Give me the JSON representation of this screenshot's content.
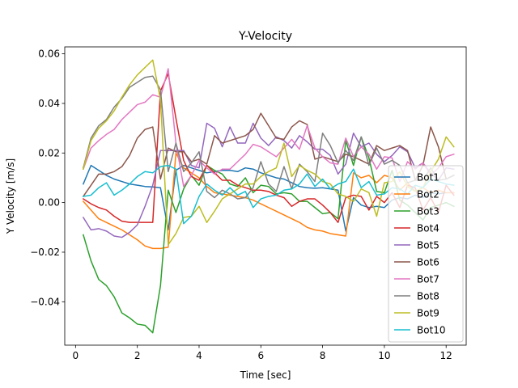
{
  "chart_data": {
    "type": "line",
    "title": "Y-Velocity",
    "xlabel": "Time [sec]",
    "ylabel": "Y Velocity [m/s]",
    "xlim": [
      -0.35,
      12.65
    ],
    "ylim": [
      -0.0575,
      0.0628
    ],
    "xticks": [
      0,
      2,
      4,
      6,
      8,
      10,
      12
    ],
    "xtick_labels": [
      "0",
      "2",
      "4",
      "6",
      "8",
      "10",
      "12"
    ],
    "yticks": [
      -0.04,
      -0.02,
      0.0,
      0.02,
      0.04,
      0.06
    ],
    "ytick_labels": [
      "−0.04",
      "−0.02",
      "0.00",
      "0.02",
      "0.04",
      "0.06"
    ],
    "grid": false,
    "legend_position": "lower right",
    "series": [
      {
        "name": "Bot1",
        "color": "#1f77b4",
        "x": [
          0.25,
          0.5,
          0.75,
          1.0,
          1.25,
          1.5,
          1.75,
          2.0,
          2.25,
          2.5,
          2.75,
          3.0,
          3.25,
          3.5,
          3.75,
          4.0,
          4.25,
          4.5,
          4.75,
          5.0,
          5.25,
          5.5,
          5.75,
          6.0,
          6.25,
          6.5,
          6.75,
          7.0,
          7.25,
          7.5,
          7.75,
          8.0,
          8.25,
          8.5,
          8.75,
          9.0,
          9.25,
          9.5,
          9.75,
          10.0,
          10.25,
          10.5,
          10.75,
          11.0,
          11.25,
          11.5,
          11.75,
          12.0,
          12.25
        ],
        "y": [
          0.0075,
          0.015,
          0.013,
          0.011,
          0.0095,
          0.0085,
          0.0075,
          0.007,
          0.0065,
          0.0063,
          0.006,
          -0.011,
          0.013,
          0.015,
          0.014,
          0.013,
          0.012,
          0.0125,
          0.013,
          0.013,
          0.0125,
          0.014,
          0.0135,
          0.012,
          0.011,
          0.01,
          0.0095,
          0.008,
          0.0065,
          0.006,
          0.0058,
          0.006,
          0.0055,
          0.005,
          -0.0115,
          0.002,
          -0.001,
          -0.002,
          -0.0015,
          -0.002,
          0.001,
          0.002,
          0.0015,
          0.003,
          0.002,
          0.004,
          0.0035,
          0.004,
          0.004
        ]
      },
      {
        "name": "Bot2",
        "color": "#ff7f0e",
        "x": [
          0.25,
          0.5,
          0.75,
          1.0,
          1.25,
          1.5,
          1.75,
          2.0,
          2.25,
          2.5,
          2.75,
          3.0,
          3.25,
          3.5,
          3.75,
          4.0,
          4.25,
          4.5,
          4.75,
          5.0,
          5.25,
          5.5,
          5.75,
          6.0,
          6.25,
          6.5,
          6.75,
          7.0,
          7.25,
          7.5,
          7.75,
          8.0,
          8.25,
          8.5,
          8.75,
          9.0,
          9.25,
          9.5,
          9.75,
          10.0,
          10.25,
          10.5,
          10.75,
          11.0,
          11.25,
          11.5,
          11.75,
          12.0,
          12.25
        ],
        "y": [
          0.0005,
          -0.003,
          -0.0065,
          -0.008,
          -0.0095,
          -0.011,
          -0.013,
          -0.015,
          -0.0175,
          -0.0185,
          -0.0185,
          -0.018,
          0.02,
          0.014,
          0.012,
          0.01,
          0.0065,
          0.004,
          0.0035,
          0.003,
          0.0025,
          0.002,
          0.001,
          -0.0005,
          -0.002,
          -0.0035,
          -0.005,
          -0.0065,
          -0.008,
          -0.01,
          -0.011,
          -0.0115,
          -0.0125,
          -0.013,
          -0.0135,
          0.012,
          0.01,
          0.011,
          0.008,
          0.011,
          0.01,
          0.005,
          0.008,
          0.0045,
          0.006,
          0.004,
          0.005,
          0.004,
          0.004
        ]
      },
      {
        "name": "Bot3",
        "color": "#2ca02c",
        "x": [
          0.25,
          0.5,
          0.75,
          1.0,
          1.25,
          1.5,
          1.75,
          2.0,
          2.25,
          2.5,
          2.75,
          3.0,
          3.25,
          3.5,
          3.75,
          4.0,
          4.25,
          4.5,
          4.75,
          5.0,
          5.25,
          5.5,
          5.75,
          6.0,
          6.25,
          6.5,
          6.75,
          7.0,
          7.25,
          7.5,
          7.75,
          8.0,
          8.25,
          8.5,
          8.75,
          9.0,
          9.25,
          9.5,
          9.75,
          10.0,
          10.25,
          10.5,
          10.75,
          11.0,
          11.25,
          11.5,
          11.75,
          12.0,
          12.25
        ],
        "y": [
          -0.013,
          -0.0235,
          -0.031,
          -0.0335,
          -0.038,
          -0.0445,
          -0.0465,
          -0.049,
          -0.0495,
          -0.0525,
          -0.0335,
          0.005,
          -0.004,
          0.0055,
          0.011,
          0.007,
          0.015,
          0.013,
          0.0115,
          0.0075,
          0.0065,
          0.01,
          0.004,
          0.007,
          0.0065,
          0.0035,
          0.004,
          0.0035,
          0.0005,
          0.0005,
          -0.002,
          -0.0045,
          -0.004,
          -0.0065,
          0.025,
          0.015,
          0.0265,
          0.018,
          0.0045,
          0.004,
          0.013,
          0.001,
          -0.001,
          -0.004,
          -0.007,
          -0.002,
          -0.001,
          0.0,
          -0.0015
        ]
      },
      {
        "name": "Bot4",
        "color": "#d62728",
        "x": [
          0.25,
          0.5,
          0.75,
          1.0,
          1.25,
          1.5,
          1.75,
          2.0,
          2.25,
          2.5,
          2.75,
          3.0,
          3.25,
          3.5,
          3.75,
          4.0,
          4.25,
          4.5,
          4.75,
          5.0,
          5.25,
          5.5,
          5.75,
          6.0,
          6.25,
          6.5,
          6.75,
          7.0,
          7.25,
          7.5,
          7.75,
          8.0,
          8.25,
          8.5,
          8.75,
          9.0,
          9.25,
          9.5,
          9.75,
          10.0,
          10.25,
          10.5,
          10.75,
          11.0,
          11.25,
          11.5,
          11.75,
          12.0,
          12.25
        ],
        "y": [
          0.0015,
          -0.0005,
          -0.002,
          -0.003,
          -0.0055,
          -0.0075,
          -0.008,
          -0.008,
          -0.008,
          -0.008,
          0.045,
          0.052,
          0.034,
          0.017,
          0.0105,
          0.009,
          0.015,
          0.012,
          0.009,
          0.009,
          0.007,
          0.006,
          0.005,
          0.005,
          0.0045,
          0.003,
          0.002,
          -0.0015,
          0.0005,
          0.0015,
          0.0015,
          -0.001,
          -0.004,
          -0.008,
          0.002,
          0.003,
          0.0025,
          -0.003,
          0.0025,
          0.0,
          0.004,
          -0.002,
          0.007,
          0.006,
          -0.003,
          0.002,
          -0.004,
          0.007,
          0.003
        ]
      },
      {
        "name": "Bot5",
        "color": "#9467bd",
        "x": [
          0.25,
          0.5,
          0.75,
          1.0,
          1.25,
          1.5,
          1.75,
          2.0,
          2.25,
          2.5,
          2.75,
          3.0,
          3.25,
          3.5,
          3.75,
          4.0,
          4.25,
          4.5,
          4.75,
          5.0,
          5.25,
          5.5,
          5.75,
          6.0,
          6.25,
          6.5,
          6.75,
          7.0,
          7.25,
          7.5,
          7.75,
          8.0,
          8.25,
          8.5,
          8.75,
          9.0,
          9.25,
          9.5,
          9.75,
          10.0,
          10.25,
          10.5,
          10.75,
          11.0,
          11.25,
          11.5,
          11.75,
          12.0,
          12.25
        ],
        "y": [
          -0.006,
          -0.011,
          -0.0105,
          -0.0115,
          -0.0135,
          -0.014,
          -0.012,
          -0.009,
          -0.0015,
          0.007,
          0.021,
          0.021,
          0.021,
          0.021,
          0.015,
          0.014,
          0.032,
          0.03,
          0.0225,
          0.0305,
          0.024,
          0.024,
          0.032,
          0.026,
          0.023,
          0.0265,
          0.025,
          0.022,
          0.027,
          0.0245,
          0.0215,
          0.0215,
          0.019,
          0.0115,
          0.0155,
          0.028,
          0.0225,
          0.024,
          0.0195,
          0.0165,
          0.019,
          0.0225,
          0.0205,
          0.014,
          0.016,
          0.012,
          0.009,
          0.014,
          0.0135
        ]
      },
      {
        "name": "Bot6",
        "color": "#8c564b",
        "x": [
          0.25,
          0.5,
          0.75,
          1.0,
          1.25,
          1.5,
          1.75,
          2.0,
          2.25,
          2.5,
          2.75,
          3.0,
          3.25,
          3.5,
          3.75,
          4.0,
          4.25,
          4.5,
          4.75,
          5.0,
          5.25,
          5.5,
          5.75,
          6.0,
          6.25,
          6.5,
          6.75,
          7.0,
          7.25,
          7.5,
          7.75,
          8.0,
          8.25,
          8.5,
          8.75,
          9.0,
          9.25,
          9.5,
          9.75,
          10.0,
          10.25,
          10.5,
          10.75,
          11.0,
          11.25,
          11.5,
          11.75,
          12.0,
          12.25
        ],
        "y": [
          0.0025,
          0.007,
          0.0115,
          0.0115,
          0.0125,
          0.0145,
          0.019,
          0.026,
          0.0295,
          0.0305,
          0.0095,
          0.022,
          0.0205,
          0.0205,
          0.0165,
          0.0175,
          0.0155,
          0.027,
          0.024,
          0.025,
          0.026,
          0.027,
          0.0295,
          0.036,
          0.031,
          0.026,
          0.0255,
          0.0305,
          0.033,
          0.0315,
          0.0175,
          0.0185,
          0.0175,
          0.0165,
          0.0195,
          0.0185,
          0.017,
          0.0155,
          0.023,
          0.021,
          0.022,
          0.023,
          0.021,
          0.009,
          0.015,
          0.0305,
          0.0225,
          0.0095,
          0.011
        ]
      },
      {
        "name": "Bot7",
        "color": "#e377c2",
        "x": [
          0.25,
          0.5,
          0.75,
          1.0,
          1.25,
          1.5,
          1.75,
          2.0,
          2.25,
          2.5,
          2.75,
          3.0,
          3.25,
          3.5,
          3.75,
          4.0,
          4.25,
          4.5,
          4.75,
          5.0,
          5.25,
          5.5,
          5.75,
          6.0,
          6.25,
          6.5,
          6.75,
          7.0,
          7.25,
          7.5,
          7.75,
          8.0,
          8.25,
          8.5,
          8.75,
          9.0,
          9.25,
          9.5,
          9.75,
          10.0,
          10.25,
          10.5,
          10.75,
          11.0,
          11.25,
          11.5,
          11.75,
          12.0,
          12.25
        ],
        "y": [
          0.0135,
          0.022,
          0.025,
          0.0275,
          0.0295,
          0.0335,
          0.0365,
          0.0395,
          0.0405,
          0.0435,
          0.0425,
          0.054,
          0.024,
          0.0065,
          0.011,
          0.017,
          0.014,
          0.0115,
          0.0135,
          0.0135,
          0.0165,
          0.0195,
          0.0235,
          0.0225,
          0.0205,
          0.0185,
          0.022,
          0.0255,
          0.0215,
          0.031,
          0.022,
          0.0185,
          0.016,
          0.0155,
          0.026,
          0.0185,
          0.0225,
          0.0195,
          0.0135,
          0.0185,
          0.018,
          0.0085,
          0.0165,
          0.0135,
          0.016,
          0.011,
          0.014,
          0.0185,
          0.0195
        ]
      },
      {
        "name": "Bot8",
        "color": "#7f7f7f",
        "x": [
          0.25,
          0.5,
          0.75,
          1.0,
          1.25,
          1.5,
          1.75,
          2.0,
          2.25,
          2.5,
          2.75,
          3.0,
          3.25,
          3.5,
          3.75,
          4.0,
          4.25,
          4.5,
          4.75,
          5.0,
          5.25,
          5.5,
          5.75,
          6.0,
          6.25,
          6.5,
          6.75,
          7.0,
          7.25,
          7.5,
          7.75,
          8.0,
          8.25,
          8.5,
          8.75,
          9.0,
          9.25,
          9.5,
          9.75,
          10.0,
          10.25,
          10.5,
          10.75,
          11.0,
          11.25,
          11.5,
          11.75,
          12.0,
          12.25
        ],
        "y": [
          0.014,
          0.026,
          0.031,
          0.0335,
          0.0385,
          0.042,
          0.0465,
          0.0485,
          0.0505,
          0.051,
          0.0455,
          0.0125,
          0.024,
          0.0125,
          0.016,
          0.0205,
          0.0045,
          0.002,
          0.005,
          0.0035,
          0.0015,
          0.002,
          0.006,
          0.0165,
          0.0075,
          0.0045,
          0.0145,
          0.0055,
          0.0155,
          0.0125,
          0.0085,
          0.028,
          0.023,
          0.016,
          0.021,
          0.017,
          0.0265,
          0.015,
          0.022,
          0.0155,
          0.017,
          0.015,
          0.008,
          0.009,
          0.009,
          0.014,
          0.009,
          0.0095,
          0.011
        ]
      },
      {
        "name": "Bot9",
        "color": "#bcbd22",
        "x": [
          0.25,
          0.5,
          0.75,
          1.0,
          1.25,
          1.5,
          1.75,
          2.0,
          2.25,
          2.5,
          2.75,
          3.0,
          3.25,
          3.5,
          3.75,
          4.0,
          4.25,
          4.5,
          4.75,
          5.0,
          5.25,
          5.5,
          5.75,
          6.0,
          6.25,
          6.5,
          6.75,
          7.0,
          7.25,
          7.5,
          7.75,
          8.0,
          8.25,
          8.5,
          8.75,
          9.0,
          9.25,
          9.5,
          9.75,
          10.0,
          10.25,
          10.5,
          10.75,
          11.0,
          11.25,
          11.5,
          11.75,
          12.0,
          12.25
        ],
        "y": [
          0.0135,
          0.025,
          0.03,
          0.033,
          0.037,
          0.0425,
          0.0475,
          0.0515,
          0.0545,
          0.0575,
          0.0415,
          -0.017,
          -0.0125,
          -0.006,
          -0.0055,
          -0.0015,
          -0.008,
          -0.0035,
          0.0015,
          0.0035,
          0.0055,
          0.0075,
          0.0075,
          0.0105,
          0.0125,
          0.014,
          0.024,
          0.0105,
          0.015,
          0.013,
          0.0115,
          0.0085,
          0.0075,
          0.0035,
          0.0025,
          0.0005,
          0.0055,
          0.004,
          -0.0055,
          0.008,
          0.0085,
          0.0125,
          0.0065,
          0.0045,
          0.006,
          0.0125,
          0.0175,
          0.0265,
          0.0225
        ]
      },
      {
        "name": "Bot10",
        "color": "#17becf",
        "x": [
          0.25,
          0.5,
          0.75,
          1.0,
          1.25,
          1.5,
          1.75,
          2.0,
          2.25,
          2.5,
          2.75,
          3.0,
          3.25,
          3.5,
          3.75,
          4.0,
          4.25,
          4.5,
          4.75,
          5.0,
          5.25,
          5.5,
          5.75,
          6.0,
          6.25,
          6.5,
          6.75,
          7.0,
          7.25,
          7.5,
          7.75,
          8.0,
          8.25,
          8.5,
          8.75,
          9.0,
          9.25,
          9.5,
          9.75,
          10.0,
          10.25,
          10.5,
          10.75,
          11.0,
          11.25,
          11.5,
          11.75,
          12.0,
          12.25
        ],
        "y": [
          0.0025,
          0.003,
          0.006,
          0.008,
          0.003,
          0.005,
          0.0075,
          0.0105,
          0.0125,
          0.012,
          0.0145,
          0.015,
          0.0135,
          -0.0085,
          -0.0055,
          0.0025,
          0.0075,
          0.005,
          0.003,
          0.006,
          0.003,
          0.0045,
          -0.002,
          0.0015,
          0.0025,
          0.003,
          0.005,
          0.0055,
          0.0075,
          0.0115,
          0.0065,
          0.0095,
          0.0055,
          0.0075,
          0.0085,
          0.0135,
          0.006,
          0.0085,
          0.003,
          0.0035,
          0.006,
          0.0055,
          0.0035,
          0.007,
          0.006,
          0.0095,
          0.0085,
          0.0075,
          0.007
        ]
      }
    ]
  }
}
